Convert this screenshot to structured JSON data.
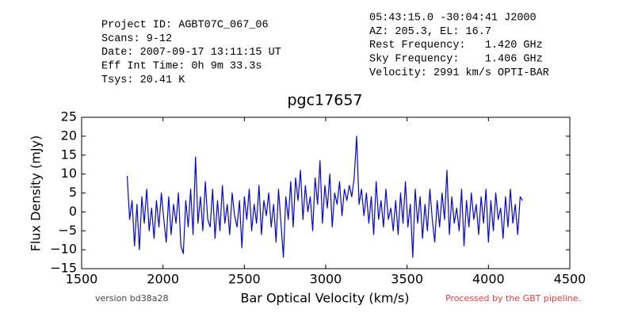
{
  "header": {
    "left": [
      "Project ID: AGBT07C_067_06",
      "Scans: 9-12",
      "Date: 2007-09-17 13:11:15 UT",
      "Eff Int Time: 0h 9m 33.3s",
      "Tsys: 20.41 K"
    ],
    "right": [
      "05:43:15.0 -30:04:41 J2000",
      "AZ: 205.3, EL: 16.7",
      "Rest Frequency:   1.420 GHz",
      "Sky Frequency:    1.406 GHz",
      "Velocity: 2991 km/s OPTI-BAR"
    ]
  },
  "footer": {
    "version": "version bd38a28",
    "pipeline": "Processed by the GBT pipeline."
  },
  "chart_data": {
    "type": "line",
    "title": "pgc17657",
    "x_label": "Bar Optical Velocity (km/s)",
    "y_label": "Flux Density (mJy)",
    "xlim": [
      1500,
      4500
    ],
    "xticks": [
      1500,
      2000,
      2500,
      3000,
      3500,
      4000,
      4500
    ],
    "ylim": [
      -15,
      25
    ],
    "yticks": [
      {
        "value": -15,
        "label": "−15"
      },
      {
        "value": -10,
        "label": "−10"
      },
      {
        "value": -5,
        "label": "−5"
      },
      0,
      5,
      10,
      15,
      20,
      25
    ],
    "grid": false,
    "x": [
      1780,
      1795,
      1810,
      1825,
      1840,
      1855,
      1870,
      1885,
      1900,
      1915,
      1930,
      1945,
      1960,
      1975,
      1990,
      2005,
      2020,
      2035,
      2050,
      2065,
      2080,
      2095,
      2110,
      2125,
      2140,
      2155,
      2170,
      2185,
      2200,
      2215,
      2230,
      2245,
      2260,
      2275,
      2290,
      2305,
      2320,
      2335,
      2350,
      2365,
      2380,
      2395,
      2410,
      2425,
      2440,
      2455,
      2470,
      2485,
      2500,
      2515,
      2530,
      2545,
      2560,
      2575,
      2590,
      2605,
      2620,
      2635,
      2650,
      2665,
      2680,
      2695,
      2710,
      2725,
      2740,
      2755,
      2770,
      2785,
      2800,
      2815,
      2830,
      2845,
      2860,
      2875,
      2890,
      2905,
      2920,
      2935,
      2950,
      2965,
      2980,
      2995,
      3010,
      3025,
      3040,
      3055,
      3070,
      3085,
      3100,
      3115,
      3130,
      3145,
      3160,
      3175,
      3190,
      3205,
      3220,
      3235,
      3250,
      3265,
      3280,
      3295,
      3310,
      3325,
      3340,
      3355,
      3370,
      3385,
      3400,
      3415,
      3430,
      3445,
      3460,
      3475,
      3490,
      3505,
      3520,
      3535,
      3550,
      3565,
      3580,
      3595,
      3610,
      3625,
      3640,
      3655,
      3670,
      3685,
      3700,
      3715,
      3730,
      3745,
      3760,
      3775,
      3790,
      3805,
      3820,
      3835,
      3850,
      3865,
      3880,
      3895,
      3910,
      3925,
      3940,
      3955,
      3970,
      3985,
      4000,
      4015,
      4030,
      4045,
      4060,
      4075,
      4090,
      4105,
      4120,
      4135,
      4150,
      4165,
      4180,
      4195,
      4210
    ],
    "series": [
      {
        "color": "#0000ff",
        "values": [
          9.5,
          -2,
          3,
          -9,
          2,
          -10,
          4,
          -3,
          6,
          -5,
          1,
          -7,
          3,
          -4,
          5,
          -2,
          -8,
          4,
          -6,
          2,
          -3,
          5,
          -9,
          -11,
          3,
          -4,
          6,
          -6,
          14.5,
          -3,
          4,
          -5,
          8,
          -2,
          -4,
          6,
          -7,
          3,
          -5,
          7,
          -3,
          2,
          -6,
          5,
          -1,
          -4,
          3,
          -9.5,
          4,
          -2,
          6,
          -5,
          2,
          -3,
          7,
          -6,
          3,
          -1,
          5,
          -4,
          2,
          -8,
          6,
          -3,
          -12,
          4,
          -2,
          8,
          -4,
          9,
          3,
          11,
          -2,
          7,
          0,
          4,
          -5,
          9,
          2,
          13.5,
          -3,
          7,
          1,
          10,
          -4,
          5,
          2,
          8,
          -1,
          6,
          3,
          7,
          4,
          9,
          20,
          2,
          6,
          -1,
          5,
          -3,
          4,
          -6,
          8,
          -2,
          3,
          -4,
          6,
          -2,
          1,
          -5,
          3,
          -6,
          5,
          -3,
          8,
          -4,
          2,
          -12,
          6,
          -3,
          4,
          -7,
          2,
          -5,
          6,
          -2,
          -8,
          3,
          -4,
          5,
          -2,
          11,
          -6,
          4,
          -3,
          1,
          -5,
          6,
          -9,
          3,
          -4,
          5,
          -2,
          2,
          -6,
          4,
          -3,
          6,
          -8,
          3,
          -5,
          5,
          -2,
          1,
          -7,
          4,
          -4,
          6,
          -3,
          2,
          -6,
          4,
          3
        ]
      }
    ]
  }
}
